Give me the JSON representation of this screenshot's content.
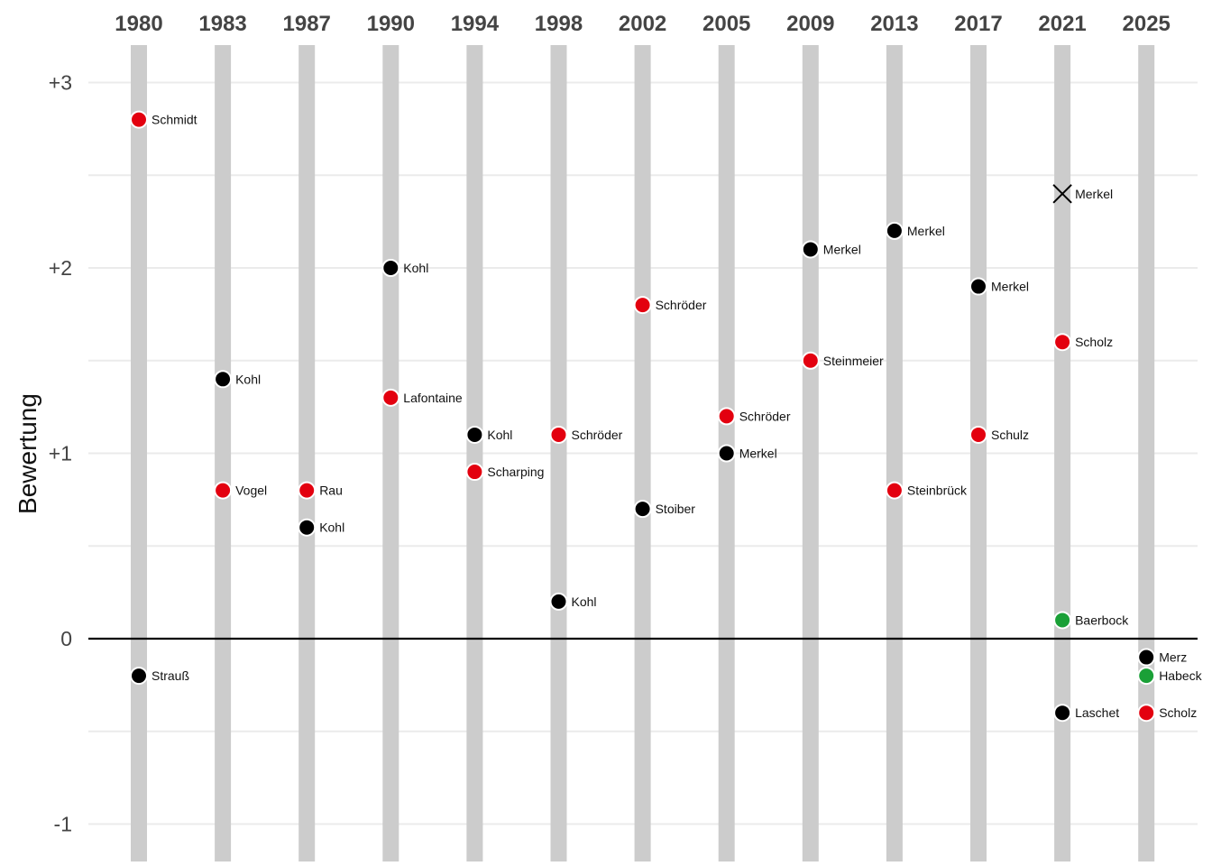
{
  "chart_data": {
    "type": "scatter",
    "title": "",
    "xlabel": "",
    "ylabel": "Bewertung",
    "ylim": [
      -1.2,
      3.2
    ],
    "y_ticks": [
      {
        "value": 3,
        "label": "+3"
      },
      {
        "value": 2,
        "label": "+2"
      },
      {
        "value": 1,
        "label": "+1"
      },
      {
        "value": 0,
        "label": "0"
      },
      {
        "value": -1,
        "label": "-1"
      }
    ],
    "categories": [
      "1980",
      "1983",
      "1987",
      "1990",
      "1994",
      "1998",
      "2002",
      "2005",
      "2009",
      "2013",
      "2017",
      "2021",
      "2025"
    ],
    "colors": {
      "spd": "#e3000f",
      "union": "#000000",
      "gruene": "#1aa037",
      "band": "#cccccc",
      "grid": "#ebebeb",
      "zero": "#000000"
    },
    "points": [
      {
        "year": "1980",
        "name": "Schmidt",
        "value": 2.8,
        "party": "spd"
      },
      {
        "year": "1980",
        "name": "Strauß",
        "value": -0.2,
        "party": "union"
      },
      {
        "year": "1983",
        "name": "Kohl",
        "value": 1.4,
        "party": "union"
      },
      {
        "year": "1983",
        "name": "Vogel",
        "value": 0.8,
        "party": "spd"
      },
      {
        "year": "1987",
        "name": "Rau",
        "value": 0.8,
        "party": "spd"
      },
      {
        "year": "1987",
        "name": "Kohl",
        "value": 0.6,
        "party": "union"
      },
      {
        "year": "1990",
        "name": "Kohl",
        "value": 2.0,
        "party": "union"
      },
      {
        "year": "1990",
        "name": "Lafontaine",
        "value": 1.3,
        "party": "spd"
      },
      {
        "year": "1994",
        "name": "Kohl",
        "value": 1.1,
        "party": "union"
      },
      {
        "year": "1994",
        "name": "Scharping",
        "value": 0.9,
        "party": "spd"
      },
      {
        "year": "1998",
        "name": "Schröder",
        "value": 1.1,
        "party": "spd"
      },
      {
        "year": "1998",
        "name": "Kohl",
        "value": 0.2,
        "party": "union"
      },
      {
        "year": "2002",
        "name": "Schröder",
        "value": 1.8,
        "party": "spd"
      },
      {
        "year": "2002",
        "name": "Stoiber",
        "value": 0.7,
        "party": "union"
      },
      {
        "year": "2005",
        "name": "Schröder",
        "value": 1.2,
        "party": "spd"
      },
      {
        "year": "2005",
        "name": "Merkel",
        "value": 1.0,
        "party": "union"
      },
      {
        "year": "2009",
        "name": "Merkel",
        "value": 2.1,
        "party": "union"
      },
      {
        "year": "2009",
        "name": "Steinmeier",
        "value": 1.5,
        "party": "spd"
      },
      {
        "year": "2013",
        "name": "Merkel",
        "value": 2.2,
        "party": "union"
      },
      {
        "year": "2013",
        "name": "Steinbrück",
        "value": 0.8,
        "party": "spd"
      },
      {
        "year": "2017",
        "name": "Merkel",
        "value": 1.9,
        "party": "union"
      },
      {
        "year": "2017",
        "name": "Schulz",
        "value": 1.1,
        "party": "spd"
      },
      {
        "year": "2021",
        "name": "Merkel",
        "value": 2.4,
        "party": "union",
        "marker": "x"
      },
      {
        "year": "2021",
        "name": "Scholz",
        "value": 1.6,
        "party": "spd"
      },
      {
        "year": "2021",
        "name": "Baerbock",
        "value": 0.1,
        "party": "gruene"
      },
      {
        "year": "2021",
        "name": "Laschet",
        "value": -0.4,
        "party": "union"
      },
      {
        "year": "2025",
        "name": "Merz",
        "value": -0.1,
        "party": "union"
      },
      {
        "year": "2025",
        "name": "Habeck",
        "value": -0.2,
        "party": "gruene"
      },
      {
        "year": "2025",
        "name": "Scholz",
        "value": -0.4,
        "party": "spd"
      }
    ]
  }
}
